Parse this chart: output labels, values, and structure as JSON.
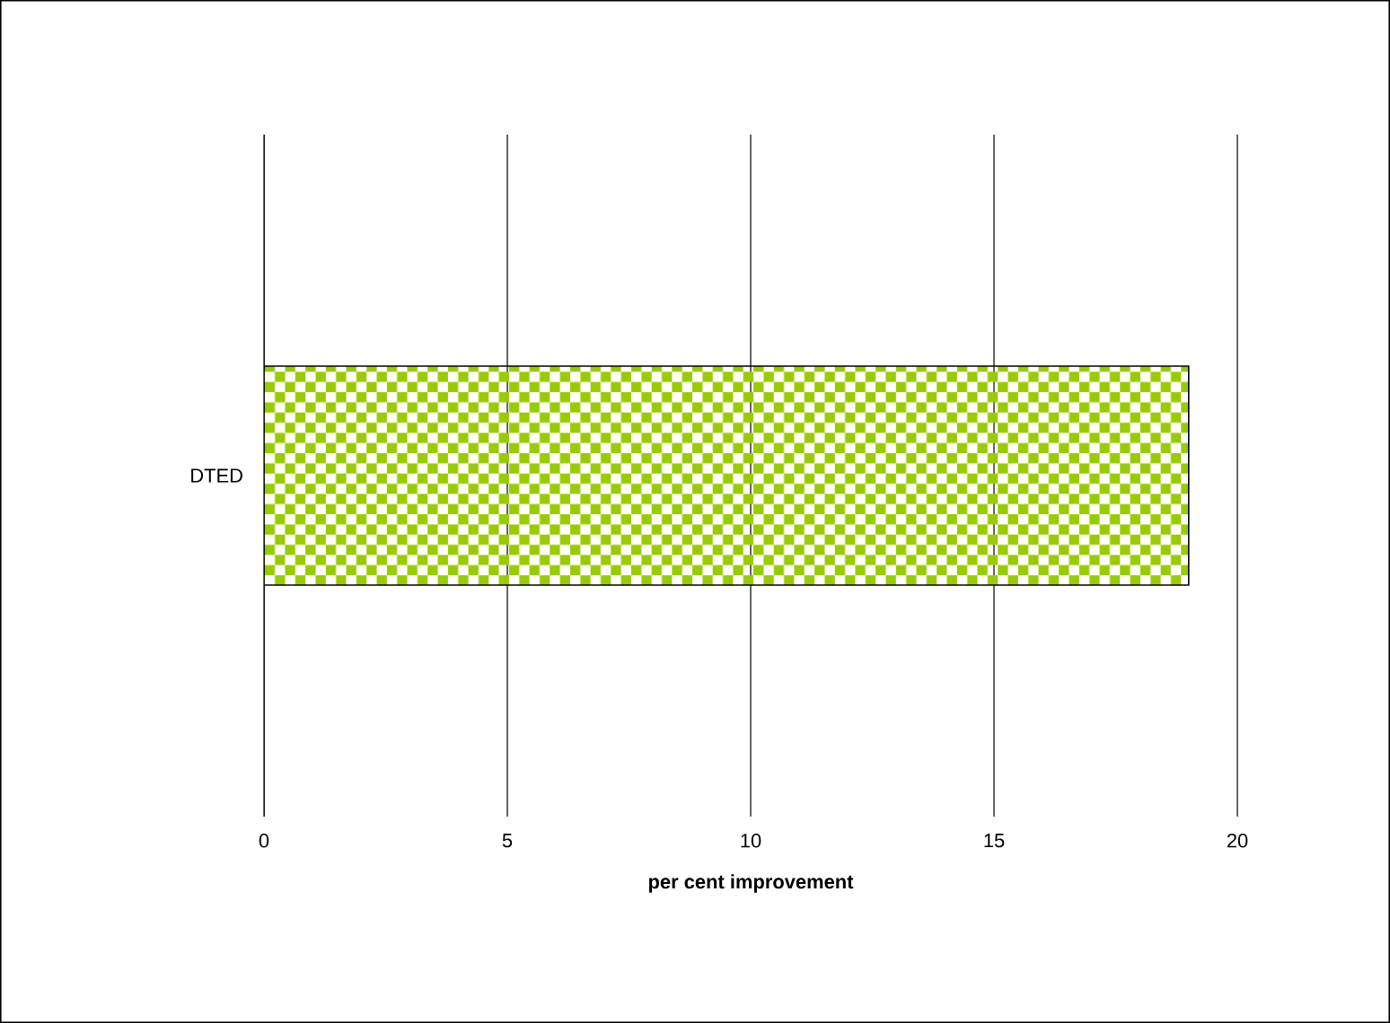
{
  "chart_data": {
    "type": "bar",
    "orientation": "horizontal",
    "categories": [
      "DTED"
    ],
    "series": [
      {
        "color": "#99cc00",
        "values": [
          19
        ]
      }
    ],
    "xlabel": "per cent improvement",
    "xlim": [
      0,
      20
    ],
    "xticks": [
      0,
      5,
      10,
      15,
      20
    ],
    "grid": "x"
  }
}
